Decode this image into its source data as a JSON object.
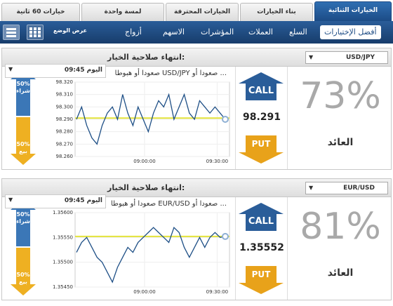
{
  "tabs": [
    {
      "label": "خيارات 60 ثانية",
      "active": false
    },
    {
      "label": "لمسة واحدة",
      "active": false
    },
    {
      "label": "الخيارات المحترفة",
      "active": false
    },
    {
      "label": "بناء الخيارات",
      "active": false
    },
    {
      "label": "الخيارات الثنائية",
      "active": true
    }
  ],
  "view": {
    "label": "عرض الوضع",
    "icons": [
      "grid-view-icon",
      "list-view-icon"
    ]
  },
  "nav": [
    {
      "label": "أفضل الإختيارات",
      "active": true
    },
    {
      "label": "السلع",
      "active": false
    },
    {
      "label": "العملات",
      "active": false
    },
    {
      "label": "المؤشرات",
      "active": false
    },
    {
      "label": "الاسهم",
      "active": false
    },
    {
      "label": "أزواج",
      "active": false
    }
  ],
  "panels": [
    {
      "expiry_label": "انتهاء صلاحية الخيار:",
      "asset": "USD/JPY",
      "description": "صعودا أو هبوطا USD/JPY صعودا أو ...",
      "time": "09:45 اليوم",
      "call_label": "CALL",
      "put_label": "PUT",
      "price": "98.291",
      "payout": "73%",
      "return_label": "العائد",
      "sentiment_up": {
        "pct": "50%",
        "label": "شراء"
      },
      "sentiment_down": {
        "pct": "50%",
        "label": "بيع"
      },
      "chart_data": {
        "type": "line",
        "yticks": [
          "98.320",
          "98.310",
          "98.300",
          "98.290",
          "98.280",
          "98.270",
          "98.260"
        ],
        "xticks": [
          "09:00:00",
          "09:30:00"
        ],
        "strike": 98.291,
        "ylim": [
          98.26,
          98.32
        ],
        "values": [
          98.29,
          98.3,
          98.285,
          98.275,
          98.27,
          98.285,
          98.295,
          98.3,
          98.29,
          98.31,
          98.295,
          98.285,
          98.3,
          98.29,
          98.28,
          98.295,
          98.305,
          98.3,
          98.31,
          98.29,
          98.3,
          98.31,
          98.295,
          98.29,
          98.305,
          98.3,
          98.295,
          98.3,
          98.295,
          98.29
        ]
      }
    },
    {
      "expiry_label": "انتهاء صلاحية الخيار:",
      "asset": "EUR/USD",
      "description": "صعودا أو هبوطا EUR/USD صعودا أو ...",
      "time": "09:45 اليوم",
      "call_label": "CALL",
      "put_label": "PUT",
      "price": "1.35552",
      "payout": "81%",
      "return_label": "العائد",
      "sentiment_up": {
        "pct": "50%",
        "label": "شراء"
      },
      "sentiment_down": {
        "pct": "50%",
        "label": "بيع"
      },
      "chart_data": {
        "type": "line",
        "yticks": [
          "1.35600",
          "1.35550",
          "1.35500",
          "1.35450"
        ],
        "xticks": [
          "09:00:00",
          "09:30:00"
        ],
        "strike": 1.35552,
        "ylim": [
          1.3545,
          1.356
        ],
        "values": [
          1.3552,
          1.3554,
          1.3555,
          1.3553,
          1.3551,
          1.355,
          1.3548,
          1.3546,
          1.3549,
          1.3551,
          1.3553,
          1.3552,
          1.3554,
          1.3555,
          1.3556,
          1.3557,
          1.3556,
          1.3555,
          1.3554,
          1.3557,
          1.3556,
          1.3553,
          1.3551,
          1.3553,
          1.3555,
          1.3553,
          1.3555,
          1.3556,
          1.3555,
          1.35552
        ]
      }
    }
  ],
  "colors": {
    "brand": "#1f4d85",
    "call": "#2a5d99",
    "put": "#e8a21a",
    "strike": "#e3e33a"
  }
}
